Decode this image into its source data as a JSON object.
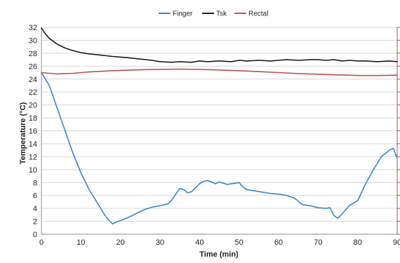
{
  "chart_data": {
    "type": "line",
    "xlabel": "Time (min)",
    "ylabel": "Temperature (°C)",
    "xlim": [
      0,
      90
    ],
    "ylim": [
      0,
      32
    ],
    "x_ticks": [
      "0",
      "10",
      "20",
      "30",
      "40",
      "50",
      "60",
      "70",
      "80",
      "90"
    ],
    "y_ticks": [
      "0",
      "2",
      "4",
      "6",
      "8",
      "10",
      "12",
      "14",
      "16",
      "18",
      "20",
      "22",
      "24",
      "26",
      "28",
      "30",
      "32"
    ],
    "grid": "horizontal",
    "legend_position": "top-center",
    "series": [
      {
        "name": "Finger",
        "color": "#3a87c8",
        "points": [
          [
            0,
            25
          ],
          [
            2,
            23
          ],
          [
            4,
            19.5
          ],
          [
            6,
            16
          ],
          [
            8,
            12.5
          ],
          [
            10,
            9.5
          ],
          [
            12,
            7
          ],
          [
            14,
            5
          ],
          [
            16,
            3
          ],
          [
            17,
            2.2
          ],
          [
            18,
            1.6
          ],
          [
            19,
            1.9
          ],
          [
            20,
            2.1
          ],
          [
            22,
            2.6
          ],
          [
            24,
            3.2
          ],
          [
            26,
            3.8
          ],
          [
            28,
            4.2
          ],
          [
            30,
            4.4
          ],
          [
            32,
            4.7
          ],
          [
            33,
            5.3
          ],
          [
            34,
            6.2
          ],
          [
            35,
            7.1
          ],
          [
            36,
            6.9
          ],
          [
            37,
            6.4
          ],
          [
            38,
            6.6
          ],
          [
            39,
            7.2
          ],
          [
            40,
            7.8
          ],
          [
            41,
            8.2
          ],
          [
            42,
            8.3
          ],
          [
            43,
            8.1
          ],
          [
            44,
            7.8
          ],
          [
            45,
            8.1
          ],
          [
            46,
            7.9
          ],
          [
            47,
            7.7
          ],
          [
            48,
            7.8
          ],
          [
            49,
            7.9
          ],
          [
            50,
            8
          ],
          [
            51,
            7.3
          ],
          [
            52,
            6.9
          ],
          [
            54,
            6.7
          ],
          [
            56,
            6.5
          ],
          [
            58,
            6.3
          ],
          [
            60,
            6.2
          ],
          [
            62,
            6
          ],
          [
            64,
            5.6
          ],
          [
            66,
            4.6
          ],
          [
            68,
            4.4
          ],
          [
            70,
            4.1
          ],
          [
            72,
            4.0
          ],
          [
            73,
            4.1
          ],
          [
            74,
            2.9
          ],
          [
            75,
            2.5
          ],
          [
            76,
            3.1
          ],
          [
            78,
            4.5
          ],
          [
            80,
            5.2
          ],
          [
            82,
            7.8
          ],
          [
            84,
            10
          ],
          [
            86,
            12
          ],
          [
            88,
            13
          ],
          [
            89,
            13.3
          ],
          [
            90,
            11.7
          ]
        ]
      },
      {
        "name": "Tsk",
        "color": "#1a1a1a",
        "points": [
          [
            0,
            31.9
          ],
          [
            1,
            31
          ],
          [
            2,
            30.3
          ],
          [
            4,
            29.4
          ],
          [
            6,
            28.8
          ],
          [
            8,
            28.4
          ],
          [
            10,
            28.1
          ],
          [
            12,
            27.9
          ],
          [
            15,
            27.7
          ],
          [
            18,
            27.5
          ],
          [
            20,
            27.4
          ],
          [
            22,
            27.3
          ],
          [
            25,
            27.1
          ],
          [
            28,
            26.9
          ],
          [
            30,
            26.7
          ],
          [
            33,
            26.6
          ],
          [
            35,
            26.7
          ],
          [
            38,
            26.6
          ],
          [
            40,
            26.8
          ],
          [
            42,
            26.7
          ],
          [
            45,
            26.8
          ],
          [
            48,
            26.7
          ],
          [
            50,
            26.9
          ],
          [
            52,
            26.8
          ],
          [
            55,
            26.9
          ],
          [
            58,
            26.8
          ],
          [
            60,
            26.9
          ],
          [
            62,
            27.0
          ],
          [
            65,
            26.9
          ],
          [
            68,
            27.0
          ],
          [
            70,
            27.0
          ],
          [
            72,
            26.9
          ],
          [
            74,
            27.0
          ],
          [
            76,
            26.8
          ],
          [
            78,
            26.9
          ],
          [
            80,
            26.8
          ],
          [
            82,
            26.8
          ],
          [
            85,
            26.7
          ],
          [
            88,
            26.8
          ],
          [
            90,
            26.7
          ]
        ]
      },
      {
        "name": "Rectal",
        "color": "#c0504d",
        "points": [
          [
            0,
            25
          ],
          [
            2,
            24.9
          ],
          [
            4,
            24.8
          ],
          [
            6,
            24.85
          ],
          [
            8,
            24.9
          ],
          [
            10,
            25
          ],
          [
            12,
            25.1
          ],
          [
            15,
            25.2
          ],
          [
            18,
            25.3
          ],
          [
            20,
            25.35
          ],
          [
            25,
            25.45
          ],
          [
            30,
            25.5
          ],
          [
            35,
            25.55
          ],
          [
            40,
            25.5
          ],
          [
            45,
            25.4
          ],
          [
            50,
            25.3
          ],
          [
            55,
            25.15
          ],
          [
            60,
            25
          ],
          [
            65,
            24.85
          ],
          [
            70,
            24.75
          ],
          [
            75,
            24.65
          ],
          [
            78,
            24.6
          ],
          [
            80,
            24.55
          ],
          [
            85,
            24.55
          ],
          [
            90,
            24.6
          ]
        ]
      }
    ]
  }
}
